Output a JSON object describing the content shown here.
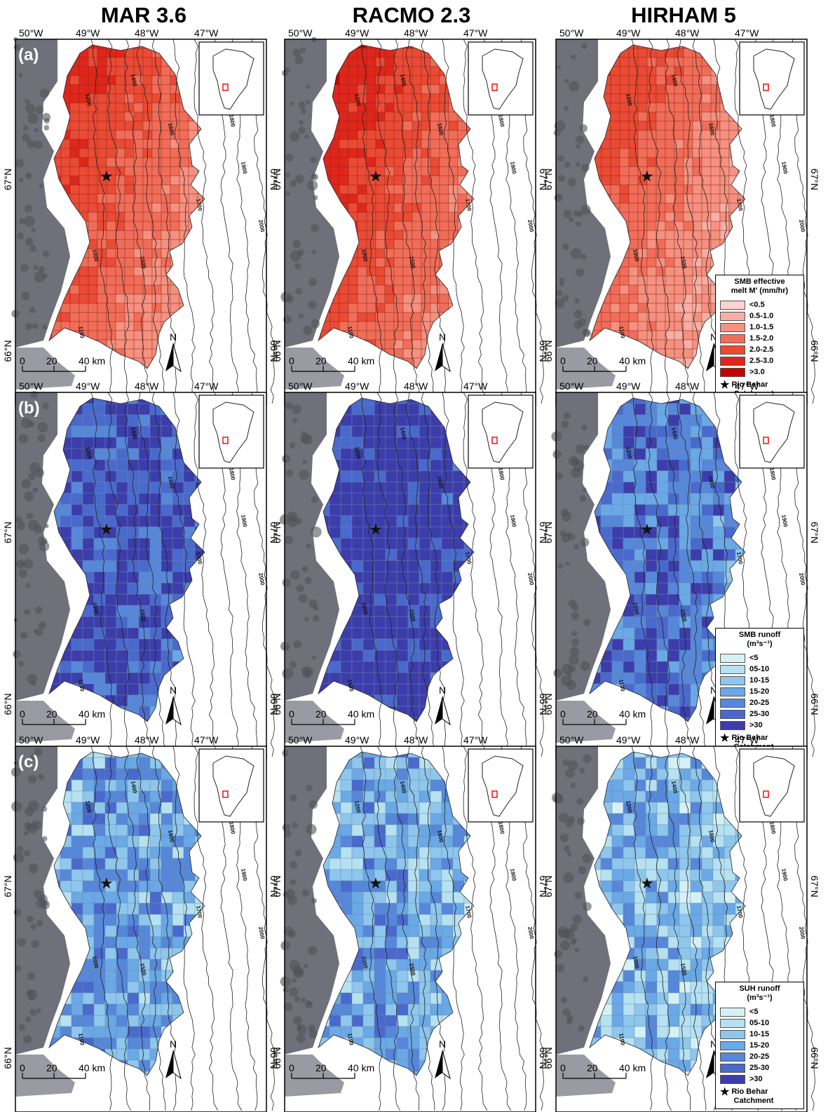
{
  "columns": [
    "MAR 3.6",
    "RACMO 2.3",
    "HIRHAM 5"
  ],
  "rows": [
    {
      "letter": "(a)",
      "legend_title_1": "SMB effective",
      "legend_title_2": "melt M′ (mm/hr)",
      "classes": [
        "<0.5",
        "0.5-1.0",
        "1.0-1.5",
        "1.5-2.0",
        "2.0-2.5",
        "2.5-3.0",
        ">3.0"
      ],
      "colors": [
        "#fcd3cf",
        "#f9aea3",
        "#f6907f",
        "#f26d58",
        "#eb4a34",
        "#e0261a",
        "#c80000"
      ]
    },
    {
      "letter": "(b)",
      "legend_title_1": "SMB runoff",
      "legend_title_2": "(m³s⁻¹)",
      "classes": [
        "<5",
        "05-10",
        "10-15",
        "15-20",
        "20-25",
        "25-30",
        ">30"
      ],
      "colors": [
        "#d6f1f6",
        "#b6e1f1",
        "#8ec6ec",
        "#6aa8e6",
        "#5687d9",
        "#4a69cc",
        "#3c3dab"
      ]
    },
    {
      "letter": "(c)",
      "legend_title_1": "SUH runoff",
      "legend_title_2": "(m³s⁻¹)",
      "classes": [
        "<5",
        "05-10",
        "10-15",
        "15-20",
        "20-25",
        "25-30",
        ">30"
      ],
      "colors": [
        "#d6f1f6",
        "#b6e1f1",
        "#8ec6ec",
        "#6aa8e6",
        "#5687d9",
        "#4a69cc",
        "#3c3dab"
      ]
    }
  ],
  "intensity": [
    [
      0.62,
      0.68,
      0.52
    ],
    [
      0.78,
      0.92,
      0.58
    ],
    [
      0.33,
      0.3,
      0.18
    ]
  ],
  "lon_labels": [
    "50°W",
    "49°W",
    "48°W",
    "47°W"
  ],
  "lat_labels": [
    "67°N",
    "66°N"
  ],
  "contours": [
    "1100",
    "1200",
    "1400",
    "1000",
    "1500",
    "1600",
    "1700",
    "1800",
    "1900",
    "2000"
  ],
  "scale": [
    "0",
    "20",
    "40 km"
  ],
  "north": "N",
  "star_label_1": "Rio Behar",
  "star_label_2": "Catchment",
  "star_glyph": "★"
}
